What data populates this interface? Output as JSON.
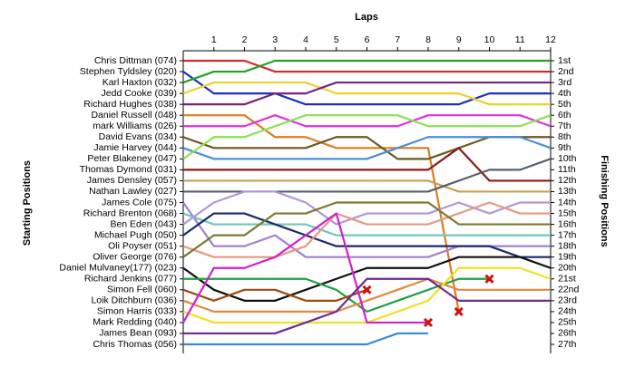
{
  "chart_data": {
    "type": "line",
    "title": "Laps",
    "y_label": "Starting Positions",
    "y2_label": "Finishing Positions",
    "x": [
      0,
      1,
      2,
      3,
      4,
      5,
      6,
      7,
      8,
      9,
      10,
      11,
      12
    ],
    "xlim": [
      0,
      12
    ],
    "xticks": [
      1,
      2,
      3,
      4,
      5,
      6,
      7,
      8,
      9,
      10,
      11,
      12
    ],
    "ylim": [
      1,
      27
    ],
    "y_reversed": true,
    "yticks": [
      {
        "value": 1,
        "label": "1st"
      },
      {
        "value": 2,
        "label": "2nd"
      },
      {
        "value": 3,
        "label": "3rd"
      },
      {
        "value": 4,
        "label": "4th"
      },
      {
        "value": 5,
        "label": "5th"
      },
      {
        "value": 6,
        "label": "6th"
      },
      {
        "value": 7,
        "label": "7th"
      },
      {
        "value": 8,
        "label": "8th"
      },
      {
        "value": 9,
        "label": "9th"
      },
      {
        "value": 10,
        "label": "10th"
      },
      {
        "value": 11,
        "label": "11th"
      },
      {
        "value": 12,
        "label": "12th"
      },
      {
        "value": 13,
        "label": "13th"
      },
      {
        "value": 14,
        "label": "14th"
      },
      {
        "value": 15,
        "label": "15th"
      },
      {
        "value": 16,
        "label": "16th"
      },
      {
        "value": 17,
        "label": "17th"
      },
      {
        "value": 18,
        "label": "18th"
      },
      {
        "value": 19,
        "label": "19th"
      },
      {
        "value": 20,
        "label": "20th"
      },
      {
        "value": 21,
        "label": "21st"
      },
      {
        "value": 22,
        "label": "22nd"
      },
      {
        "value": 23,
        "label": "23rd"
      },
      {
        "value": 24,
        "label": "24th"
      },
      {
        "value": 25,
        "label": "25th"
      },
      {
        "value": 26,
        "label": "26th"
      },
      {
        "value": 27,
        "label": "27th"
      }
    ],
    "series": [
      {
        "name": "Chris Dittman (074)",
        "color": "#d42a2a",
        "values": [
          1,
          1,
          1,
          2,
          2,
          2,
          2,
          2,
          2,
          2,
          2,
          2,
          2
        ]
      },
      {
        "name": "Stephen Tyldsley (020)",
        "color": "#1c2fbf",
        "values": [
          2,
          4,
          4,
          4,
          5,
          5,
          5,
          5,
          5,
          5,
          4,
          4,
          4
        ]
      },
      {
        "name": "Karl Haxton (032)",
        "color": "#26a126",
        "values": [
          3,
          2,
          2,
          1,
          1,
          1,
          1,
          1,
          1,
          1,
          1,
          1,
          1
        ]
      },
      {
        "name": "Jedd Cooke (039)",
        "color": "#e6d42a",
        "values": [
          4,
          3,
          3,
          3,
          3,
          4,
          4,
          4,
          4,
          4,
          5,
          5,
          5
        ]
      },
      {
        "name": "Richard Hughes (038)",
        "color": "#7a237a",
        "values": [
          5,
          5,
          5,
          4,
          4,
          3,
          3,
          3,
          3,
          3,
          3,
          3,
          3
        ]
      },
      {
        "name": "Daniel Russell (048)",
        "color": "#e07b20",
        "values": [
          6,
          6,
          6,
          8,
          8,
          9,
          9,
          9,
          9,
          24,
          null,
          null,
          null
        ],
        "retired": true
      },
      {
        "name": "mark Williams (026)",
        "color": "#e030e0",
        "values": [
          7,
          7,
          7,
          6,
          7,
          7,
          7,
          7,
          6,
          6,
          6,
          6,
          7
        ]
      },
      {
        "name": "David Evans (034)",
        "color": "#6b5a1e",
        "values": [
          8,
          9,
          9,
          9,
          9,
          8,
          8,
          10,
          10,
          9,
          8,
          8,
          8
        ]
      },
      {
        "name": "Jamie Harvey (044)",
        "color": "#4a8fd8",
        "values": [
          9,
          10,
          10,
          10,
          10,
          10,
          10,
          9,
          8,
          8,
          8,
          8,
          9
        ]
      },
      {
        "name": "Peter Blakeney (047)",
        "color": "#8ce050",
        "values": [
          10,
          8,
          8,
          7,
          6,
          6,
          6,
          6,
          7,
          7,
          7,
          7,
          6
        ]
      },
      {
        "name": "Thomas Dymond (031)",
        "color": "#8a1a1a",
        "values": [
          11,
          11,
          11,
          11,
          11,
          11,
          11,
          11,
          11,
          9,
          12,
          12,
          12
        ]
      },
      {
        "name": "James Densley (057)",
        "color": "#c8a050",
        "values": [
          12,
          12,
          12,
          12,
          12,
          12,
          12,
          12,
          12,
          13,
          13,
          13,
          13
        ]
      },
      {
        "name": "Nathan Lawley (027)",
        "color": "#556070",
        "values": [
          13,
          13,
          13,
          13,
          13,
          13,
          13,
          13,
          13,
          12,
          11,
          11,
          10
        ]
      },
      {
        "name": "James Cole (075)",
        "color": "#a080d0",
        "values": [
          14,
          18,
          18,
          17,
          19,
          19,
          19,
          19,
          19,
          18,
          18,
          18,
          18
        ]
      },
      {
        "name": "Richard Brenton (068)",
        "color": "#70c8b8",
        "values": [
          15,
          16,
          16,
          16,
          16,
          17,
          17,
          17,
          17,
          17,
          17,
          17,
          17
        ]
      },
      {
        "name": "Ben Eden (043)",
        "color": "#b098d8",
        "values": [
          16,
          14,
          13,
          13,
          14,
          16,
          15,
          15,
          15,
          14,
          15,
          14,
          14
        ]
      },
      {
        "name": "Michael Pugh (050)",
        "color": "#1a2a6a",
        "values": [
          17,
          15,
          15,
          16,
          17,
          18,
          18,
          18,
          18,
          18,
          18,
          19,
          19
        ]
      },
      {
        "name": "Oli Poyser (051)",
        "color": "#e89880",
        "values": [
          18,
          19,
          19,
          19,
          18,
          15,
          16,
          16,
          16,
          15,
          14,
          15,
          15
        ]
      },
      {
        "name": "Oliver George (076)",
        "color": "#7a7a30",
        "values": [
          19,
          17,
          17,
          15,
          15,
          14,
          14,
          14,
          14,
          16,
          16,
          16,
          16
        ]
      },
      {
        "name": "Daniel Mulvaney(177) (023)",
        "color": "#101010",
        "values": [
          20,
          22,
          23,
          23,
          22,
          21,
          20,
          20,
          20,
          19,
          19,
          19,
          20
        ]
      },
      {
        "name": "Richard Jenkins (077)",
        "color": "#20a040",
        "values": [
          21,
          21,
          21,
          21,
          21,
          22,
          24,
          23,
          22,
          21,
          21,
          null,
          null
        ],
        "retired": true
      },
      {
        "name": "Simon Fell (060)",
        "color": "#a04a10",
        "values": [
          22,
          23,
          22,
          22,
          23,
          23,
          22,
          null,
          null,
          null,
          null,
          null,
          null
        ],
        "retired": true
      },
      {
        "name": "Loik Ditchburn (036)",
        "color": "#e08a40",
        "values": [
          23,
          24,
          24,
          24,
          24,
          24,
          23,
          22,
          21,
          22,
          22,
          22,
          22
        ]
      },
      {
        "name": "Simon Harris (033)",
        "color": "#f0e020",
        "values": [
          24,
          25,
          25,
          25,
          25,
          25,
          25,
          24,
          23,
          20,
          20,
          20,
          21
        ]
      },
      {
        "name": "Mark Redding (040)",
        "color": "#d020d0",
        "values": [
          25,
          20,
          20,
          19,
          17,
          15,
          25,
          25,
          25,
          null,
          null,
          null,
          null
        ],
        "retired": true
      },
      {
        "name": "James Bean (093)",
        "color": "#702a90",
        "values": [
          26,
          26,
          26,
          26,
          25,
          24,
          21,
          21,
          21,
          23,
          23,
          23,
          23
        ]
      },
      {
        "name": "Chris Thomas (056)",
        "color": "#3a8ad8",
        "values": [
          27,
          27,
          27,
          27,
          27,
          27,
          27,
          26,
          26,
          null,
          null,
          null,
          null
        ]
      }
    ]
  }
}
